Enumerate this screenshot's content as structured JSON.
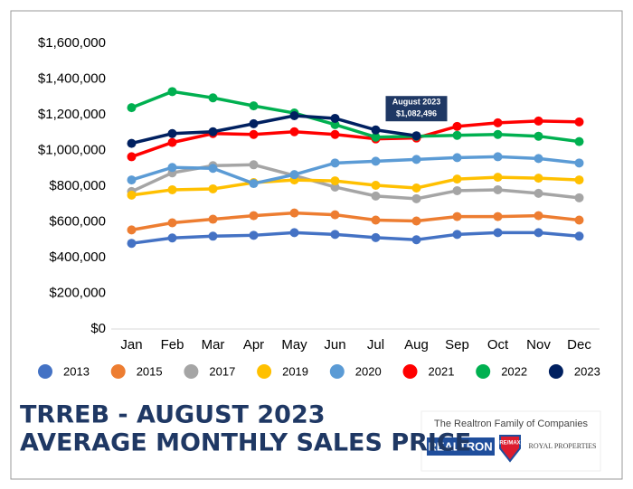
{
  "chart_data": {
    "type": "line",
    "categories": [
      "Jan",
      "Feb",
      "Mar",
      "Apr",
      "May",
      "Jun",
      "Jul",
      "Aug",
      "Sep",
      "Oct",
      "Nov",
      "Dec"
    ],
    "series": [
      {
        "name": "2013",
        "color": "#4472c4",
        "values": [
          480000,
          510000,
          520000,
          525000,
          540000,
          530000,
          512000,
          500000,
          530000,
          540000,
          540000,
          520000
        ]
      },
      {
        "name": "2015",
        "color": "#ed7d31",
        "values": [
          555000,
          595000,
          615000,
          635000,
          650000,
          640000,
          610000,
          605000,
          630000,
          630000,
          635000,
          610000
        ]
      },
      {
        "name": "2017",
        "color": "#a5a5a5",
        "values": [
          770000,
          875000,
          915000,
          920000,
          860000,
          795000,
          745000,
          730000,
          775000,
          780000,
          760000,
          735000
        ]
      },
      {
        "name": "2019",
        "color": "#ffc000",
        "values": [
          750000,
          780000,
          785000,
          820000,
          835000,
          830000,
          805000,
          790000,
          840000,
          850000,
          845000,
          835000
        ]
      },
      {
        "name": "2020",
        "color": "#5b9bd5",
        "values": [
          835000,
          905000,
          900000,
          815000,
          865000,
          930000,
          940000,
          950000,
          960000,
          965000,
          955000,
          930000
        ]
      },
      {
        "name": "2021",
        "color": "#ff0000",
        "values": [
          965000,
          1045000,
          1095000,
          1090000,
          1105000,
          1090000,
          1065000,
          1070000,
          1135000,
          1155000,
          1165000,
          1160000
        ]
      },
      {
        "name": "2022",
        "color": "#00b050",
        "values": [
          1240000,
          1330000,
          1295000,
          1250000,
          1210000,
          1145000,
          1075000,
          1080000,
          1085000,
          1090000,
          1080000,
          1050000
        ]
      },
      {
        "name": "2023",
        "color": "#002060",
        "values": [
          1040000,
          1095000,
          1105000,
          1150000,
          1195000,
          1180000,
          1115000,
          1082496,
          null,
          null,
          null,
          null
        ]
      }
    ],
    "ylim": [
      0,
      1600000
    ],
    "yticks": [
      {
        "value": 0,
        "label": "$0"
      },
      {
        "value": 200000,
        "label": "$200,000"
      },
      {
        "value": 400000,
        "label": "$400,000"
      },
      {
        "value": 600000,
        "label": "$600,000"
      },
      {
        "value": 800000,
        "label": "$800,000"
      },
      {
        "value": 1000000,
        "label": "$1,000,000"
      },
      {
        "value": 1200000,
        "label": "$1,200,000"
      },
      {
        "value": 1400000,
        "label": "$1,400,000"
      },
      {
        "value": 1600000,
        "label": "$1,600,000"
      }
    ],
    "grid": false,
    "legend": "bottom",
    "annotation": {
      "lines": [
        "August 2023",
        "$1,082,496"
      ],
      "series": 7,
      "index": 7
    },
    "title_lines": [
      "TRREB - AUGUST 2023",
      "AVERAGE MONTHLY SALES PRICE"
    ]
  },
  "footer": {
    "tagline": "The Realtron Family of Companies",
    "logos": [
      "REALTRON",
      "RE/MAX",
      "ROYAL PROPERTIES"
    ]
  }
}
